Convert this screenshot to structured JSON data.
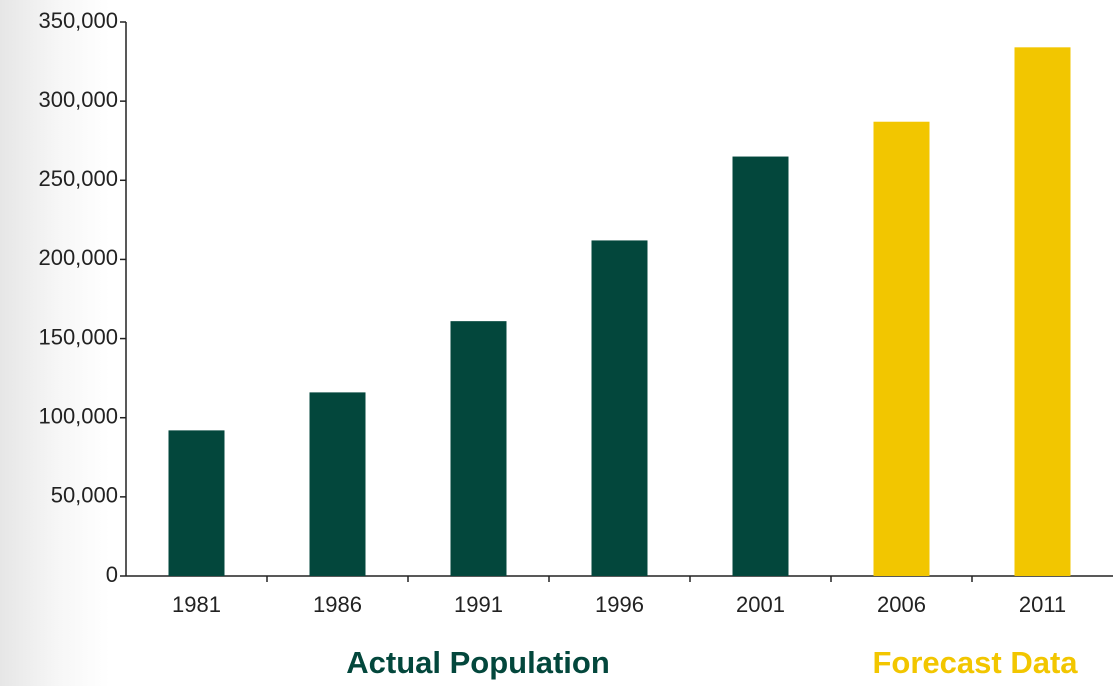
{
  "chart_data": {
    "type": "bar",
    "categories": [
      "1981",
      "1986",
      "1991",
      "1996",
      "2001",
      "2006",
      "2011"
    ],
    "series": [
      {
        "name": "Actual Population",
        "color": "#03473c",
        "values": [
          92000,
          116000,
          161000,
          212000,
          265000,
          null,
          null
        ]
      },
      {
        "name": "Forecast Data",
        "color": "#f2c600",
        "values": [
          null,
          null,
          null,
          null,
          null,
          287000,
          334000
        ]
      }
    ],
    "ylim": [
      0,
      350000
    ],
    "yticks": [
      0,
      {
        "value": 50000,
        "label": "50,000"
      },
      {
        "value": 100000,
        "label": "100,000"
      },
      {
        "value": 150000,
        "label": "150,000"
      },
      {
        "value": 200000,
        "label": "200,000"
      },
      {
        "value": 250000,
        "label": "250,000"
      },
      {
        "value": 300000,
        "label": "300,000"
      },
      {
        "value": 350000,
        "label": "350,000"
      }
    ],
    "grid": false
  }
}
